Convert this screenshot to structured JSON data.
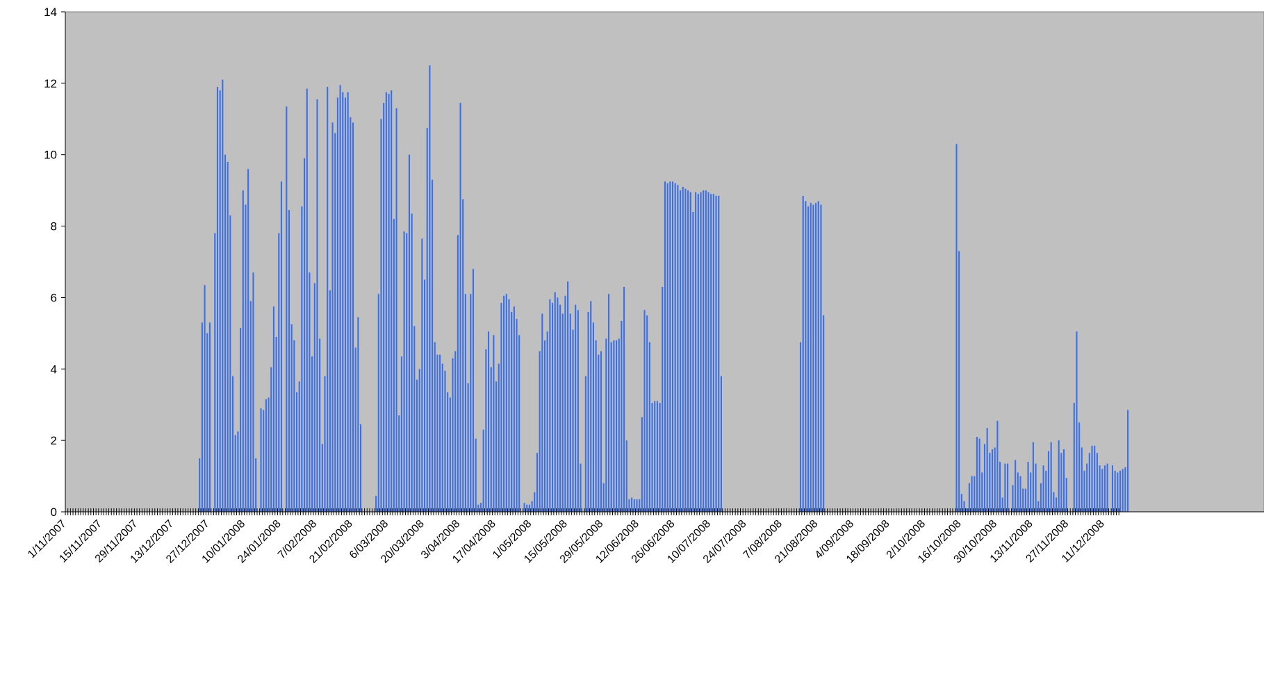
{
  "colors": {
    "plot_area": "#c0c0c0",
    "bar": "#3b6fe6",
    "axis": "#000000",
    "background": "#ffffff"
  },
  "chart_data": {
    "type": "bar",
    "title": "",
    "xlabel": "",
    "ylabel": "",
    "x_start": "1/11/2007",
    "x_end": "16/12/2008",
    "ylim": [
      0,
      14
    ],
    "yticks": [
      "0",
      "2",
      "4",
      "6",
      "8",
      "10",
      "12",
      "14"
    ],
    "xtick_labels": [
      "1/11/2007",
      "15/11/2007",
      "29/11/2007",
      "13/12/2007",
      "27/12/2007",
      "10/01/2008",
      "24/01/2008",
      "7/02/2008",
      "21/02/2008",
      "6/03/2008",
      "20/03/2008",
      "3/04/2008",
      "17/04/2008",
      "1/05/2008",
      "15/05/2008",
      "29/05/2008",
      "12/06/2008",
      "26/06/2008",
      "10/07/2008",
      "24/07/2008",
      "7/08/2008",
      "21/08/2008",
      "4/09/2008",
      "18/09/2008",
      "2/10/2008",
      "16/10/2008",
      "30/10/2008",
      "13/11/2008",
      "27/11/2008",
      "11/12/2008"
    ],
    "grid": false,
    "legend": "none",
    "series": [
      {
        "segments": [
          {
            "start": "23/12/2007",
            "values": [
              1.5,
              5.3,
              6.35,
              5.0,
              5.3,
              0,
              7.8,
              11.9,
              11.8,
              12.1,
              10.0,
              9.8,
              8.3,
              3.8,
              2.15,
              2.25,
              5.15,
              9.0,
              8.6,
              9.6,
              5.9,
              6.7,
              1.5,
              0,
              2.9,
              2.85,
              3.15,
              3.2,
              4.05,
              5.75,
              4.9,
              7.8,
              9.25,
              0,
              11.35,
              8.45,
              5.25,
              4.8,
              3.35,
              3.65,
              8.55,
              9.9,
              11.85,
              6.7,
              4.35,
              6.4,
              11.55,
              4.85,
              1.9,
              3.8,
              11.9,
              6.2,
              10.9,
              10.6,
              11.6,
              11.95,
              11.75,
              11.6,
              11.75,
              11.05,
              10.9,
              4.6,
              5.45,
              2.45
            ]
          },
          {
            "start": "1/03/2008",
            "values": [
              0.45,
              6.1,
              11.0,
              11.45,
              11.75,
              11.7,
              11.8,
              8.2,
              11.3,
              2.7,
              4.35,
              7.85,
              7.8,
              10.0,
              8.35,
              5.2,
              3.7,
              4.0,
              7.65,
              6.5,
              10.75,
              12.5,
              9.3,
              4.75,
              4.4,
              4.4,
              4.15,
              3.95,
              3.35,
              3.2,
              4.3,
              4.5,
              7.75,
              11.45,
              8.75,
              6.1,
              3.6,
              6.1,
              6.8,
              2.05,
              0.2,
              0.25,
              2.3,
              4.55,
              5.05,
              4.05,
              4.95,
              3.65,
              4.15,
              5.85,
              6.05,
              6.1,
              5.95,
              5.6,
              5.75,
              5.4,
              4.95,
              0,
              0.25,
              0.2,
              0.2,
              0.3,
              0.55,
              1.65,
              4.5,
              5.55,
              4.8,
              5.05,
              5.95,
              5.85,
              6.15,
              6.0,
              5.8,
              5.55,
              6.05,
              6.45,
              5.55,
              5.1,
              5.8,
              5.65,
              1.35,
              0,
              3.8,
              5.6,
              5.9,
              5.3,
              4.8,
              4.4,
              4.5,
              0.8,
              4.85,
              6.1,
              4.75,
              4.8,
              4.8,
              4.85,
              5.35,
              6.3,
              2.0,
              0.35,
              0.4,
              0.35,
              0.35,
              0.35,
              2.65,
              5.65,
              5.5,
              4.75,
              3.05,
              3.1,
              3.1,
              3.05,
              6.3,
              9.25,
              9.2,
              9.25,
              9.25,
              9.2,
              9.15,
              9.0,
              9.1,
              9.05,
              9.0,
              8.95,
              8.4,
              8.95,
              8.9,
              8.95,
              9.0,
              9.0,
              8.95,
              8.9,
              8.9,
              8.85,
              8.85,
              3.8
            ]
          },
          {
            "start": "14/08/2008",
            "values": [
              4.75,
              8.85,
              8.7,
              8.55,
              8.65,
              8.6,
              8.65,
              8.7,
              8.6,
              5.5
            ]
          },
          {
            "start": "14/10/2008",
            "values": [
              10.3,
              7.3,
              0.5,
              0.3,
              0.1,
              0.8,
              1.0,
              1.0,
              2.1,
              2.05,
              1.1,
              1.9,
              2.35,
              1.65,
              1.75,
              1.8,
              2.55,
              1.4,
              0.4,
              1.35,
              1.35,
              0,
              0.75,
              1.45,
              1.1,
              1.0,
              0.65,
              0.65,
              1.4,
              1.1,
              1.95,
              1.35,
              0.3,
              0.8,
              1.3,
              1.15,
              1.7,
              1.95,
              0.55,
              0.4,
              2.0,
              1.65,
              1.75,
              0.95,
              0,
              0,
              3.05,
              5.05,
              2.5,
              1.8,
              1.15,
              1.35,
              1.65,
              1.85,
              1.85,
              1.65,
              1.3,
              1.2,
              1.3,
              1.35,
              0,
              1.3,
              1.15,
              1.1,
              1.15,
              1.2,
              1.25,
              2.85
            ]
          }
        ]
      }
    ]
  }
}
